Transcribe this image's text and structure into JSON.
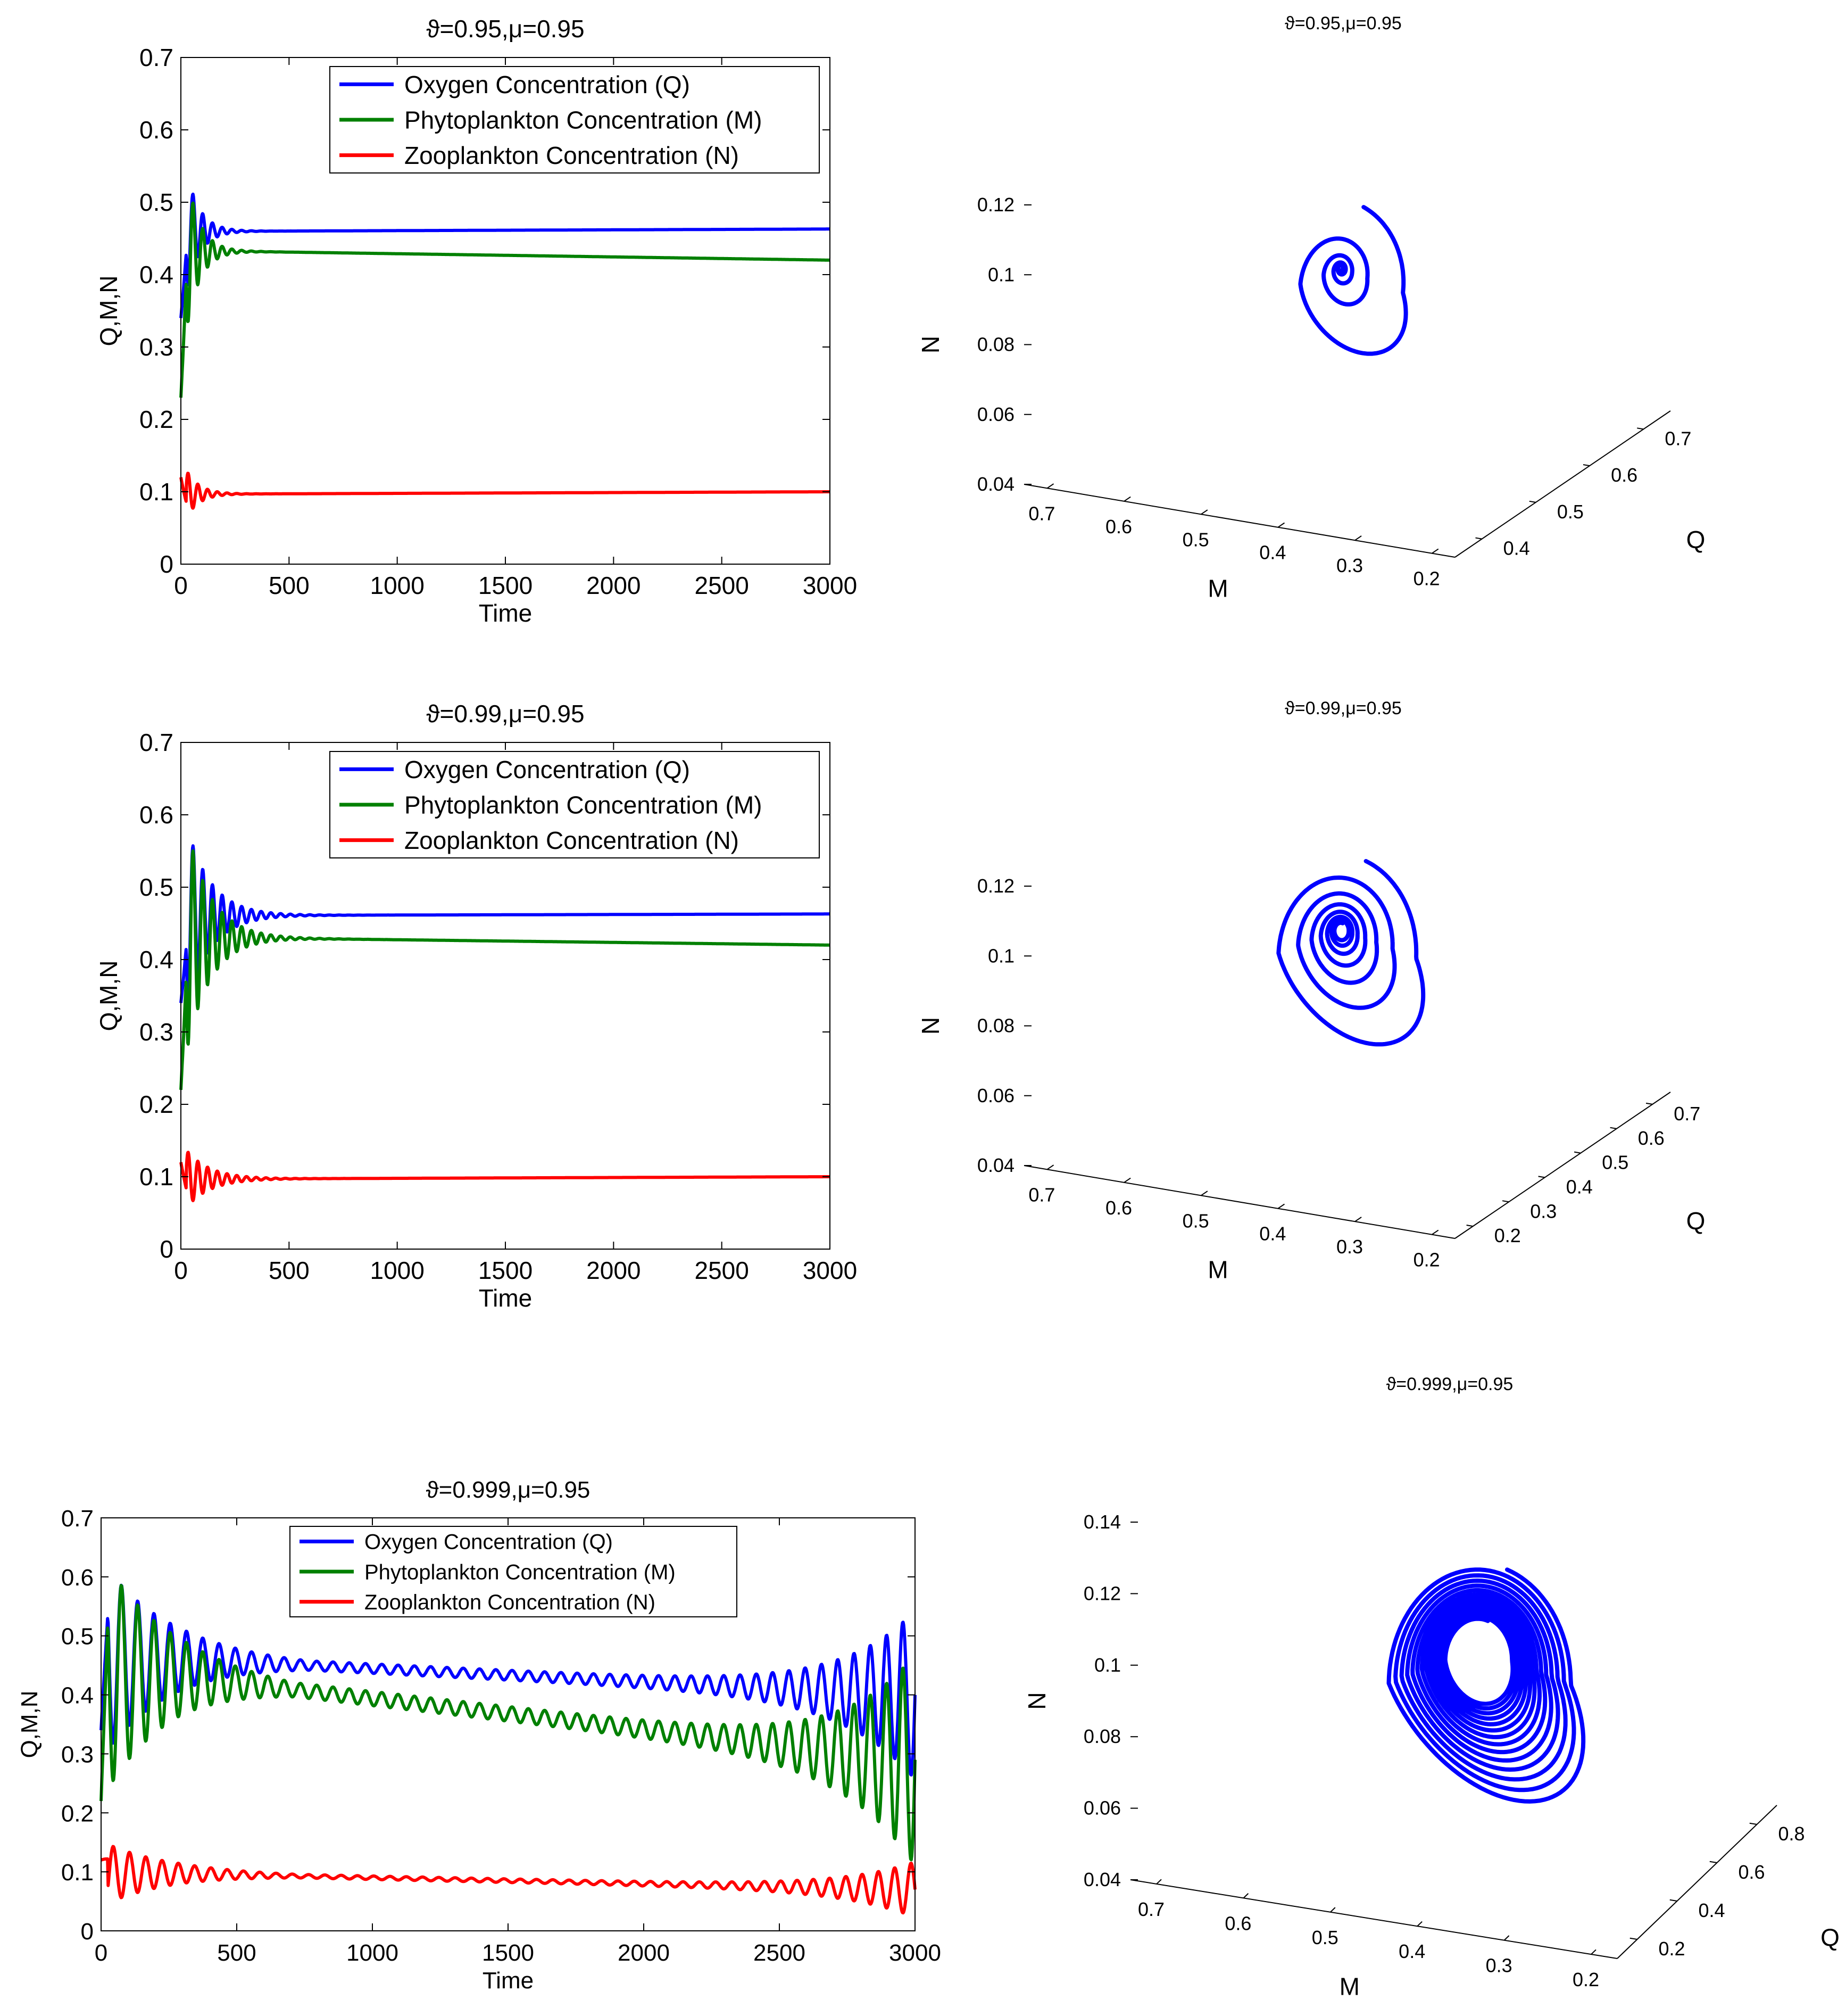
{
  "colors": {
    "oxygen": "#0000ff",
    "phyto": "#008000",
    "zoo": "#ff0000",
    "phase": "#0000ff",
    "axis": "#000000"
  },
  "time_axis": {
    "xlabel": "Time",
    "ylabel": "Q,M,N",
    "xticks": [
      "0",
      "500",
      "1000",
      "1500",
      "2000",
      "2500",
      "3000"
    ],
    "yticks": [
      "0",
      "0.1",
      "0.2",
      "0.3",
      "0.4",
      "0.5",
      "0.6",
      "0.7"
    ]
  },
  "legend": [
    "Oxygen Concentration (Q)",
    "Phytoplankton Concentration (M)",
    "Zooplankton Concentration (N)"
  ],
  "phase_axis": {
    "xlabel": "M",
    "ylabel": "N",
    "zlabel": "Q"
  },
  "chart_data": [
    {
      "type": "line",
      "title": "ϑ=0.95,μ=0.95",
      "xlabel": "Time",
      "ylabel": "Q,M,N",
      "xlim": [
        0,
        3000
      ],
      "ylim": [
        0,
        0.7
      ],
      "series": [
        {
          "name": "Oxygen Concentration (Q)",
          "equilibrium": 0.46,
          "start": 0.34,
          "amp": 0.13,
          "decay": 60,
          "period": 45,
          "end": 0.463
        },
        {
          "name": "Phytoplankton Concentration (M)",
          "equilibrium": 0.432,
          "start": 0.23,
          "amp": 0.17,
          "decay": 60,
          "period": 45,
          "end": 0.42
        },
        {
          "name": "Zooplankton Concentration (N)",
          "equilibrium": 0.097,
          "start": 0.12,
          "amp": 0.05,
          "decay": 60,
          "period": 45,
          "end": 0.1
        }
      ]
    },
    {
      "type": "line",
      "title": "ϑ=0.99,μ=0.95",
      "xlabel": "Time",
      "ylabel": "Q,M,N",
      "xlim": [
        0,
        3000
      ],
      "ylim": [
        0,
        0.7
      ],
      "series": [
        {
          "name": "Oxygen Concentration (Q)",
          "equilibrium": 0.461,
          "start": 0.34,
          "amp": 0.16,
          "decay": 110,
          "period": 45,
          "end": 0.463
        },
        {
          "name": "Phytoplankton Concentration (M)",
          "equilibrium": 0.43,
          "start": 0.22,
          "amp": 0.2,
          "decay": 110,
          "period": 45,
          "end": 0.42
        },
        {
          "name": "Zooplankton Concentration (N)",
          "equilibrium": 0.097,
          "start": 0.12,
          "amp": 0.05,
          "decay": 110,
          "period": 45,
          "end": 0.1
        }
      ]
    },
    {
      "type": "line",
      "title": "ϑ=0.999,μ=0.95",
      "xlabel": "Time",
      "ylabel": "Q,M,N",
      "xlim": [
        0,
        3000
      ],
      "ylim": [
        0,
        0.7
      ],
      "series": [
        {
          "name": "Oxygen Concentration (Q)",
          "equilibrium": 0.46,
          "start": 0.34,
          "amp": 0.17,
          "decay": 250,
          "period": 60,
          "end": 0.4,
          "min_amp": 0.008
        },
        {
          "name": "Phytoplankton Concentration (M)",
          "equilibrium": 0.43,
          "start": 0.22,
          "amp": 0.21,
          "decay": 250,
          "period": 60,
          "end": 0.29,
          "min_amp": 0.012
        },
        {
          "name": "Zooplankton Concentration (N)",
          "equilibrium": 0.097,
          "start": 0.12,
          "amp": 0.055,
          "decay": 250,
          "period": 60,
          "end": 0.07,
          "min_amp": 0.003
        }
      ]
    },
    {
      "type": "line3d",
      "title": "ϑ=0.95,μ=0.95",
      "xlabel": "M",
      "ylabel": "N",
      "zlabel": "Q",
      "m_ticks": [
        "0.7",
        "0.6",
        "0.5",
        "0.4",
        "0.3",
        "0.2"
      ],
      "q_ticks": [
        "0.4",
        "0.5",
        "0.6",
        "0.7"
      ],
      "n_ticks": [
        "0.04",
        "0.06",
        "0.08",
        "0.1",
        "0.12"
      ],
      "spiral": {
        "turns": 4.5,
        "tightness": 3.2,
        "center_n": 0.102,
        "outer_n_range": [
          0.048,
          0.116
        ]
      }
    },
    {
      "type": "line3d",
      "title": "ϑ=0.99,μ=0.95",
      "xlabel": "M",
      "ylabel": "N",
      "zlabel": "Q",
      "m_ticks": [
        "0.7",
        "0.6",
        "0.5",
        "0.4",
        "0.3",
        "0.2"
      ],
      "q_ticks": [
        "0.2",
        "0.3",
        "0.4",
        "0.5",
        "0.6",
        "0.7"
      ],
      "n_ticks": [
        "0.04",
        "0.06",
        "0.08",
        "0.1",
        "0.12"
      ],
      "spiral": {
        "turns": 7,
        "tightness": 2.2,
        "center_n": 0.108,
        "outer_n_range": [
          0.042,
          0.117
        ]
      }
    },
    {
      "type": "line3d",
      "title": "ϑ=0.999,μ=0.95",
      "xlabel": "M",
      "ylabel": "N",
      "zlabel": "Q",
      "m_ticks": [
        "0.7",
        "0.6",
        "0.5",
        "0.4",
        "0.3",
        "0.2"
      ],
      "q_ticks": [
        "0.2",
        "0.4",
        "0.6",
        "0.8"
      ],
      "n_ticks": [
        "0.04",
        "0.06",
        "0.08",
        "0.1",
        "0.12",
        "0.14"
      ],
      "spiral": {
        "turns": 14,
        "tightness": 0.9,
        "center_n": 0.105,
        "outer_n_range": [
          0.045,
          0.13
        ]
      }
    }
  ]
}
